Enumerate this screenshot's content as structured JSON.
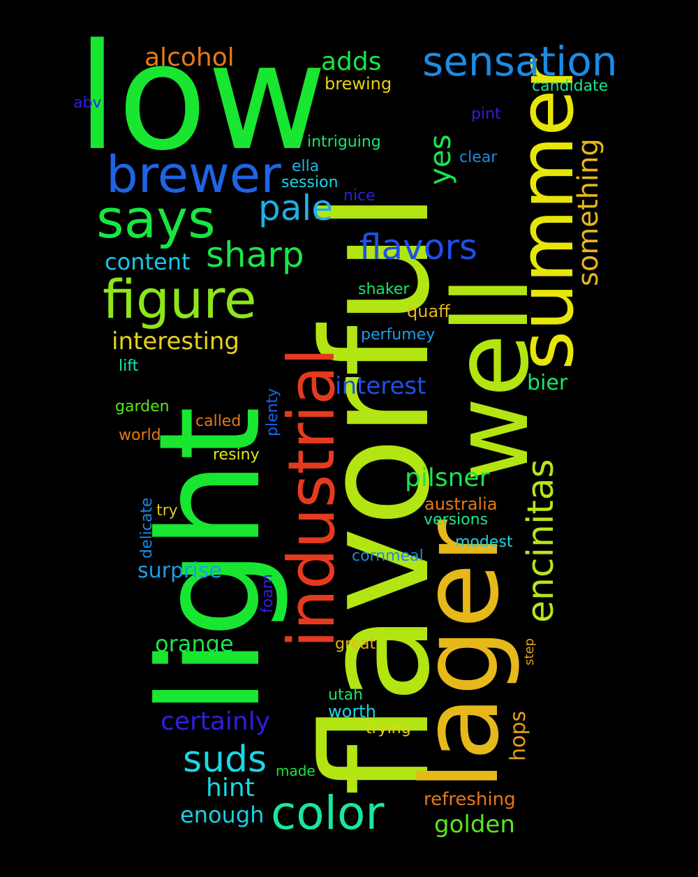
{
  "words": [
    {
      "id": "low",
      "text": "low",
      "color": "#19e630",
      "rotated": false
    },
    {
      "id": "flavorful",
      "text": "flavorful",
      "color": "#b2e512",
      "rotated": true
    },
    {
      "id": "light",
      "text": "light",
      "color": "#19e630",
      "rotated": true
    },
    {
      "id": "lager",
      "text": "lager",
      "color": "#e6b81a",
      "rotated": true
    },
    {
      "id": "well",
      "text": "well",
      "color": "#b2e512",
      "rotated": true
    },
    {
      "id": "summer",
      "text": "summer",
      "color": "#e6e60a",
      "rotated": true
    },
    {
      "id": "industrial",
      "text": "industrial",
      "color": "#e63a1e",
      "rotated": true
    },
    {
      "id": "brewer",
      "text": "brewer",
      "color": "#1e64e6",
      "rotated": false
    },
    {
      "id": "says",
      "text": "says",
      "color": "#19e640",
      "rotated": false
    },
    {
      "id": "figure",
      "text": "figure",
      "color": "#8ee61a",
      "rotated": false
    },
    {
      "id": "sensation",
      "text": "sensation",
      "color": "#1a8ce6",
      "rotated": false
    },
    {
      "id": "color",
      "text": "color",
      "color": "#19e6a0",
      "rotated": false
    },
    {
      "id": "encinitas",
      "text": "encinitas",
      "color": "#b8e61a",
      "rotated": true
    },
    {
      "id": "flavors",
      "text": "flavors",
      "color": "#1e50e6",
      "rotated": false
    },
    {
      "id": "pale",
      "text": "pale",
      "color": "#1eb0e6",
      "rotated": false
    },
    {
      "id": "sharp",
      "text": "sharp",
      "color": "#19e64a",
      "rotated": false
    },
    {
      "id": "something",
      "text": "something",
      "color": "#e6b81a",
      "rotated": true
    },
    {
      "id": "suds",
      "text": "suds",
      "color": "#19d8e6",
      "rotated": false
    },
    {
      "id": "certainly",
      "text": "certainly",
      "color": "#2e1ee6",
      "rotated": false
    },
    {
      "id": "yes",
      "text": "yes",
      "color": "#19e64a",
      "rotated": true
    },
    {
      "id": "alcohol",
      "text": "alcohol",
      "color": "#e67a1a",
      "rotated": false
    },
    {
      "id": "adds",
      "text": "adds",
      "color": "#19e640",
      "rotated": false
    },
    {
      "id": "pilsner",
      "text": "pilsner",
      "color": "#19e64a",
      "rotated": false
    },
    {
      "id": "interest",
      "text": "interest",
      "color": "#1e50e6",
      "rotated": false
    },
    {
      "id": "interesting",
      "text": "interesting",
      "color": "#e6d21a",
      "rotated": false
    },
    {
      "id": "content",
      "text": "content",
      "color": "#19c8e6",
      "rotated": false
    },
    {
      "id": "hint",
      "text": "hint",
      "color": "#19d8e6",
      "rotated": false
    },
    {
      "id": "orange",
      "text": "orange",
      "color": "#19e64a",
      "rotated": false
    },
    {
      "id": "golden",
      "text": "golden",
      "color": "#5ae61a",
      "rotated": false
    },
    {
      "id": "enough",
      "text": "enough",
      "color": "#19d0e6",
      "rotated": false
    },
    {
      "id": "bier",
      "text": "bier",
      "color": "#19e66a",
      "rotated": false
    },
    {
      "id": "surprise",
      "text": "surprise",
      "color": "#1a9ee6",
      "rotated": false
    },
    {
      "id": "hops",
      "text": "hops",
      "color": "#e6a01a",
      "rotated": true
    },
    {
      "id": "refreshing",
      "text": "refreshing",
      "color": "#e6781a",
      "rotated": false
    },
    {
      "id": "australia",
      "text": "australia",
      "color": "#e6781a",
      "rotated": false
    },
    {
      "id": "brewing",
      "text": "brewing",
      "color": "#e6d21a",
      "rotated": false
    },
    {
      "id": "intriguing",
      "text": "intriguing",
      "color": "#19e66a",
      "rotated": false
    },
    {
      "id": "candidate",
      "text": "candidate",
      "color": "#19e68c",
      "rotated": false
    },
    {
      "id": "pint",
      "text": "pint",
      "color": "#2e1ee6",
      "rotated": false
    },
    {
      "id": "abv",
      "text": "abv",
      "color": "#2e1ee6",
      "rotated": false
    },
    {
      "id": "clear",
      "text": "clear",
      "color": "#1a8ce6",
      "rotated": false
    },
    {
      "id": "ella",
      "text": "ella",
      "color": "#19b8e6",
      "rotated": false
    },
    {
      "id": "session",
      "text": "session",
      "color": "#19d8e6",
      "rotated": false
    },
    {
      "id": "nice",
      "text": "nice",
      "color": "#2e1ee6",
      "rotated": false
    },
    {
      "id": "shaker",
      "text": "shaker",
      "color": "#19e66a",
      "rotated": false
    },
    {
      "id": "quaff",
      "text": "quaff",
      "color": "#e6b81a",
      "rotated": false
    },
    {
      "id": "perfumey",
      "text": "perfumey",
      "color": "#1a9ee6",
      "rotated": false
    },
    {
      "id": "lift",
      "text": "lift",
      "color": "#19e6b8",
      "rotated": false
    },
    {
      "id": "garden",
      "text": "garden",
      "color": "#5ae61a",
      "rotated": false
    },
    {
      "id": "called",
      "text": "called",
      "color": "#e6781a",
      "rotated": false
    },
    {
      "id": "world",
      "text": "world",
      "color": "#e6781a",
      "rotated": false
    },
    {
      "id": "plenty",
      "text": "plenty",
      "color": "#1a64e6",
      "rotated": true
    },
    {
      "id": "resiny",
      "text": "resiny",
      "color": "#e6e61a",
      "rotated": false
    },
    {
      "id": "delicate",
      "text": "delicate",
      "color": "#1a8ce6",
      "rotated": true
    },
    {
      "id": "try",
      "text": "try",
      "color": "#e6c81a",
      "rotated": false
    },
    {
      "id": "versions",
      "text": "versions",
      "color": "#19e68c",
      "rotated": false
    },
    {
      "id": "modest",
      "text": "modest",
      "color": "#19d8e6",
      "rotated": false
    },
    {
      "id": "cornmeal",
      "text": "cornmeal",
      "color": "#1a8ce6",
      "rotated": false
    },
    {
      "id": "foam",
      "text": "foam",
      "color": "#2e1ee6",
      "rotated": true
    },
    {
      "id": "great",
      "text": "great",
      "color": "#e6b81a",
      "rotated": false
    },
    {
      "id": "step",
      "text": "step",
      "color": "#e6a01a",
      "rotated": true
    },
    {
      "id": "utah",
      "text": "utah",
      "color": "#19e66a",
      "rotated": false
    },
    {
      "id": "worth",
      "text": "worth",
      "color": "#19d8e6",
      "rotated": false
    },
    {
      "id": "trying",
      "text": "trying",
      "color": "#e6d21a",
      "rotated": false
    },
    {
      "id": "made",
      "text": "made",
      "color": "#19e640",
      "rotated": false
    }
  ]
}
